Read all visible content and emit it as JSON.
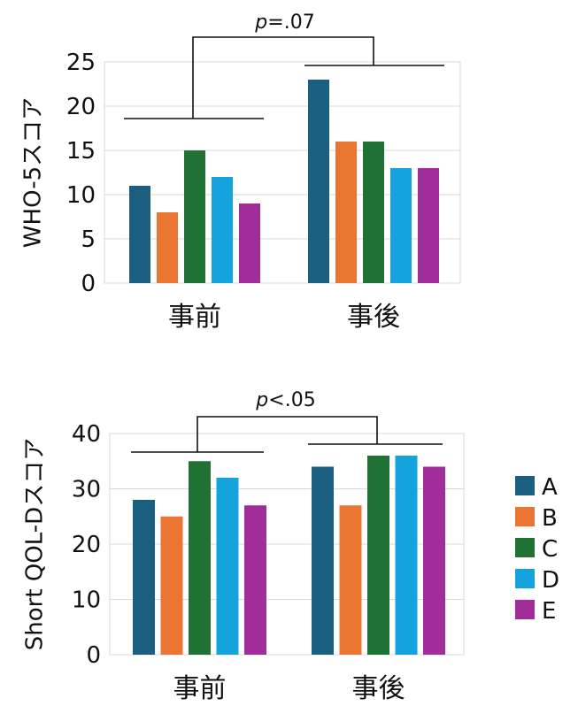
{
  "chart_data": [
    {
      "type": "bar",
      "ylabel": "WHO-5スコア",
      "ylim": [
        0,
        25
      ],
      "yticks": [
        0,
        5,
        10,
        15,
        20,
        25
      ],
      "categories": [
        "事前",
        "事後"
      ],
      "series": [
        {
          "name": "A",
          "values": [
            11,
            23
          ]
        },
        {
          "name": "B",
          "values": [
            8,
            16
          ]
        },
        {
          "name": "C",
          "values": [
            15,
            16
          ]
        },
        {
          "name": "D",
          "values": [
            12,
            13
          ]
        },
        {
          "name": "E",
          "values": [
            9,
            13
          ]
        }
      ],
      "annotation": {
        "p_letter": "p",
        "p_text": "=.07"
      },
      "grid": true
    },
    {
      "type": "bar",
      "ylabel": "Short QOL-Dスコア",
      "ylim": [
        0,
        40
      ],
      "yticks": [
        0,
        10,
        20,
        30,
        40
      ],
      "categories": [
        "事前",
        "事後"
      ],
      "series": [
        {
          "name": "A",
          "values": [
            28,
            34
          ]
        },
        {
          "name": "B",
          "values": [
            25,
            27
          ]
        },
        {
          "name": "C",
          "values": [
            35,
            36
          ]
        },
        {
          "name": "D",
          "values": [
            32,
            36
          ]
        },
        {
          "name": "E",
          "values": [
            27,
            34
          ]
        }
      ],
      "annotation": {
        "p_letter": "p",
        "p_text": "<.05"
      },
      "grid": true
    }
  ],
  "legend": {
    "position": "right",
    "items": [
      {
        "label": "A",
        "color": "#1a5f80"
      },
      {
        "label": "B",
        "color": "#ea7533"
      },
      {
        "label": "C",
        "color": "#1f7234"
      },
      {
        "label": "D",
        "color": "#14a3dc"
      },
      {
        "label": "E",
        "color": "#a02d9a"
      }
    ]
  }
}
